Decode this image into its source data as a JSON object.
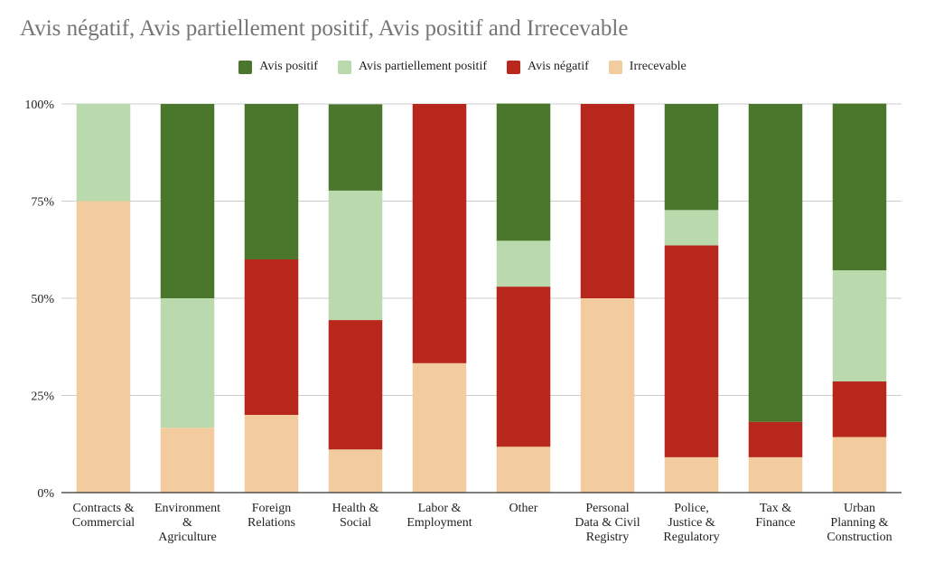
{
  "chart_data": {
    "type": "bar",
    "stacked": true,
    "title": "Avis négatif, Avis partiellement positif, Avis positif and Irrecevable",
    "legend_position": "top",
    "grid": true,
    "ylim": [
      0,
      100
    ],
    "yticks": [
      "0%",
      "25%",
      "50%",
      "75%",
      "100%"
    ],
    "categories": [
      [
        "Contracts &",
        "Commercial"
      ],
      [
        "Environment",
        "&",
        "Agriculture"
      ],
      [
        "Foreign",
        "Relations"
      ],
      [
        "Health &",
        "Social"
      ],
      [
        "Labor &",
        "Employment"
      ],
      [
        "Other"
      ],
      [
        "Personal",
        "Data & Civil",
        "Registry"
      ],
      [
        "Police,",
        "Justice &",
        "Regulatory"
      ],
      [
        "Tax &",
        "Finance"
      ],
      [
        "Urban",
        "Planning &",
        "Construction"
      ]
    ],
    "legend": [
      {
        "name": "Avis positif",
        "color": "#4a772c"
      },
      {
        "name": "Avis partiellement positif",
        "color": "#bad9ac"
      },
      {
        "name": "Avis négatif",
        "color": "#b7271c"
      },
      {
        "name": "Irrecevable",
        "color": "#f2cc9f"
      }
    ],
    "series": [
      {
        "name": "Irrecevable",
        "color": "#f2cc9f",
        "values": [
          75,
          16.7,
          20,
          11.1,
          33.3,
          11.8,
          50,
          9.1,
          9.1,
          14.3
        ]
      },
      {
        "name": "Avis négatif",
        "color": "#b7271c",
        "values": [
          0,
          0,
          40,
          33.3,
          66.7,
          41.2,
          50,
          54.5,
          9.1,
          14.3
        ]
      },
      {
        "name": "Avis partiellement positif",
        "color": "#bad9ac",
        "values": [
          25,
          33.3,
          0,
          33.3,
          0,
          11.8,
          0,
          9.1,
          0,
          28.6
        ]
      },
      {
        "name": "Avis positif",
        "color": "#4a772c",
        "values": [
          0,
          50,
          40,
          22.2,
          0,
          35.3,
          0,
          27.3,
          81.8,
          42.9
        ]
      }
    ]
  }
}
